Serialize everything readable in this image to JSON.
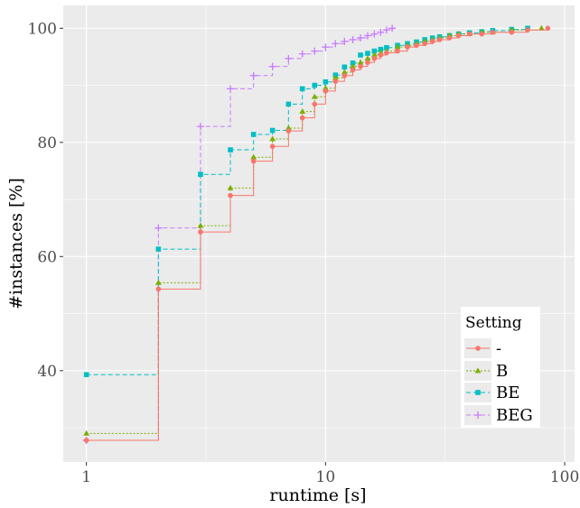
{
  "chart_data": {
    "type": "line",
    "step": true,
    "xscale": "log10",
    "xlim": [
      0.8,
      110
    ],
    "ylim": [
      24,
      104
    ],
    "xlabel": "runtime [s]",
    "ylabel": "#instances [%]",
    "x_ticks": [
      1,
      10,
      100
    ],
    "x_tick_labels": [
      "1",
      "10",
      "100"
    ],
    "y_ticks": [
      40,
      60,
      80,
      100
    ],
    "y_tick_labels": [
      "40",
      "60",
      "80",
      "100"
    ],
    "legend": {
      "title": "Setting",
      "position": "bottom-right"
    },
    "series": [
      {
        "name": "-",
        "color": "#F8766D",
        "marker": "circle",
        "dash": "solid",
        "x": [
          1,
          2,
          3,
          4,
          5,
          6,
          7,
          8,
          9,
          10,
          11,
          12,
          13,
          14,
          15,
          16,
          17,
          18,
          20,
          22,
          24,
          26,
          28,
          30,
          33,
          36,
          40,
          45,
          50,
          60,
          70,
          85
        ],
        "y": [
          27.8,
          54.3,
          64.3,
          70.7,
          76.7,
          79.3,
          82.0,
          84.3,
          86.7,
          89.0,
          90.7,
          91.7,
          92.7,
          93.3,
          94.0,
          94.7,
          95.3,
          95.7,
          96.0,
          96.7,
          97.0,
          97.3,
          97.7,
          98.0,
          98.3,
          98.7,
          99.0,
          99.0,
          99.3,
          99.3,
          99.7,
          100.0
        ]
      },
      {
        "name": "B",
        "color": "#7CAE00",
        "marker": "triangle",
        "dash": "dotted",
        "x": [
          1,
          2,
          3,
          4,
          5,
          6,
          7,
          8,
          9,
          10,
          11,
          12,
          13,
          14,
          15,
          16,
          17,
          18,
          20,
          22,
          24,
          26,
          28,
          30,
          33,
          36,
          40,
          45,
          50,
          60,
          80
        ],
        "y": [
          29.0,
          55.4,
          65.4,
          72.0,
          77.4,
          80.6,
          82.5,
          85.4,
          88.0,
          89.5,
          91.3,
          92.3,
          93.3,
          94.0,
          94.7,
          95.3,
          95.7,
          96.0,
          96.7,
          97.0,
          97.3,
          97.7,
          98.0,
          98.3,
          98.7,
          99.0,
          99.0,
          99.3,
          99.3,
          99.7,
          100.0
        ]
      },
      {
        "name": "BE",
        "color": "#00BFC4",
        "marker": "square",
        "dash": "dashed",
        "x": [
          1,
          2,
          3,
          4,
          5,
          6,
          7,
          8,
          9,
          10,
          11,
          12,
          13,
          14,
          15,
          16,
          17,
          18,
          20,
          22,
          24,
          26,
          28,
          30,
          33,
          36,
          40,
          45,
          50,
          60,
          70
        ],
        "y": [
          39.3,
          61.3,
          74.4,
          78.7,
          81.4,
          82.1,
          86.7,
          89.4,
          90.0,
          90.6,
          91.8,
          93.2,
          93.9,
          95.3,
          95.6,
          96.0,
          96.3,
          96.6,
          97.0,
          97.3,
          97.6,
          98.0,
          98.3,
          98.5,
          98.7,
          99.0,
          99.2,
          99.4,
          99.6,
          99.8,
          100.0
        ]
      },
      {
        "name": "BEG",
        "color": "#C77CFF",
        "marker": "plus",
        "dash": "dashed",
        "x": [
          1,
          2,
          3,
          4,
          5,
          6,
          7,
          8,
          9,
          10,
          11,
          12,
          13,
          14,
          15,
          16,
          17,
          18,
          19
        ],
        "y": [
          27.8,
          65.0,
          82.8,
          89.4,
          91.7,
          93.3,
          94.7,
          95.5,
          96.0,
          96.7,
          97.3,
          97.7,
          98.0,
          98.3,
          98.7,
          99.0,
          99.3,
          99.7,
          100.0
        ]
      }
    ]
  }
}
